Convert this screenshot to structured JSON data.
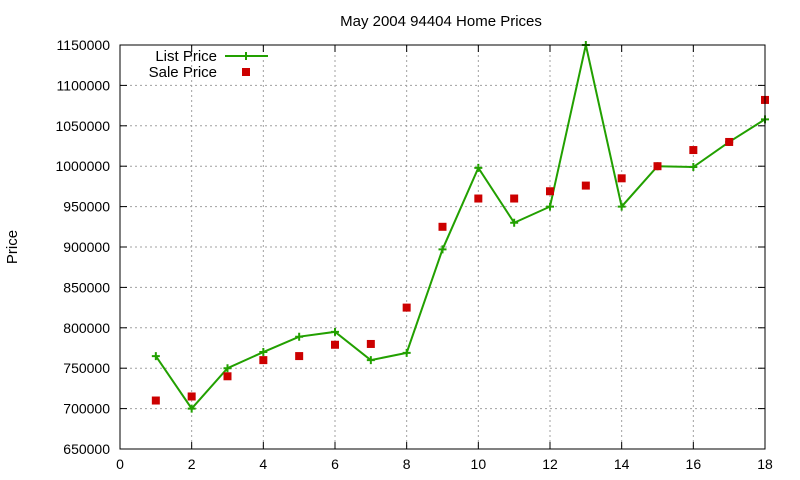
{
  "chart_data": {
    "type": "line",
    "title": "May 2004 94404 Home Prices",
    "xlabel": "",
    "ylabel": "Price",
    "xlim": [
      0,
      18
    ],
    "ylim": [
      650000,
      1150000
    ],
    "x_ticks": [
      "0",
      "2",
      "4",
      "6",
      "8",
      "10",
      "12",
      "14",
      "16",
      "18"
    ],
    "y_ticks": [
      "650000",
      "700000",
      "750000",
      "800000",
      "850000",
      "900000",
      "950000",
      "1000000",
      "1050000",
      "1100000",
      "1150000"
    ],
    "grid": true,
    "legend_position": "top-left",
    "x": [
      1,
      2,
      3,
      4,
      5,
      6,
      7,
      8,
      9,
      10,
      11,
      12,
      13,
      14,
      15,
      16,
      17,
      18
    ],
    "series": [
      {
        "name": "List Price",
        "style": "linespoints",
        "color": "#22a000",
        "values": [
          765000,
          700000,
          750000,
          770000,
          789000,
          795000,
          760000,
          769000,
          897000,
          998000,
          930000,
          950000,
          1150000,
          950000,
          1000000,
          999000,
          1030000,
          1058000
        ]
      },
      {
        "name": "Sale Price",
        "style": "points",
        "color": "#cc0000",
        "values": [
          710000,
          715000,
          740000,
          760000,
          765000,
          779000,
          780000,
          825000,
          925000,
          960000,
          960000,
          969000,
          976000,
          985000,
          1000000,
          1020000,
          1030000,
          1082000
        ]
      }
    ]
  }
}
